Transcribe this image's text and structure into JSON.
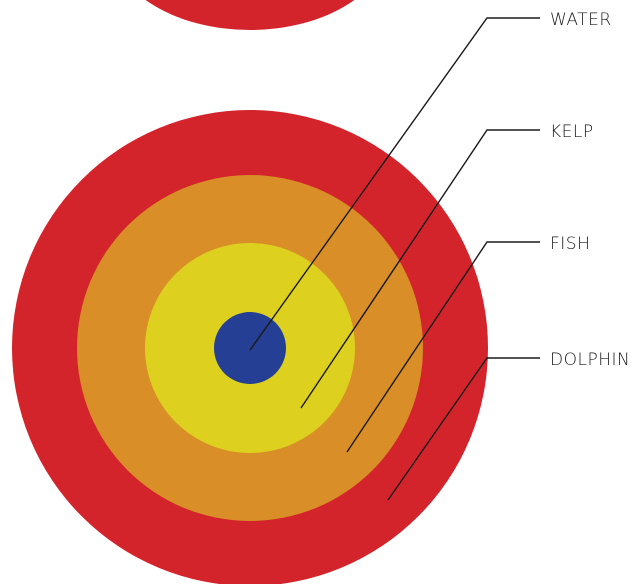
{
  "colors": {
    "dolphin": "#d4242b",
    "fish": "#d98e28",
    "kelp": "#ddd01f",
    "water": "#253f94",
    "lines": "#1a1a1a",
    "background": "#ffffff"
  },
  "labels": {
    "water": "WATER",
    "kelp": "KELP",
    "fish": "FISH",
    "dolphin": "DOLPHIN"
  }
}
